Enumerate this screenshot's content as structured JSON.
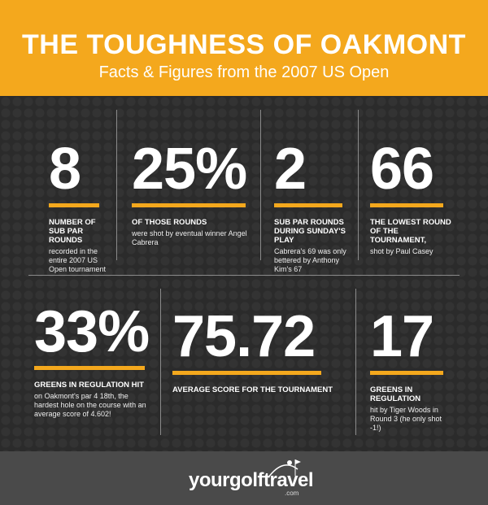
{
  "header": {
    "title": "THE TOUGHNESS OF OAKMONT",
    "subtitle": "Facts & Figures from the 2007 US Open"
  },
  "stats": [
    {
      "number": "8",
      "heading": "NUMBER OF SUB PAR ROUNDS",
      "description": "recorded in the entire 2007 US Open tournament"
    },
    {
      "number": "25%",
      "heading": "OF THOSE ROUNDS",
      "description": "were shot by eventual winner Angel Cabrera"
    },
    {
      "number": "2",
      "heading": "SUB PAR ROUNDS DURING SUNDAY'S PLAY",
      "description": "Cabrera's 69 was only bettered by Anthony Kim's 67"
    },
    {
      "number": "66",
      "heading": "THE LOWEST ROUND OF THE TOURNAMENT,",
      "description": "shot by Paul Casey"
    },
    {
      "number": "33%",
      "heading": "GREENS IN REGULATION HIT",
      "description": "on Oakmont's par 4 18th, the hardest hole on the course with an average score of 4.602!"
    },
    {
      "number": "75.72",
      "heading": "AVERAGE SCORE FOR THE TOURNAMENT",
      "description": null
    },
    {
      "number": "17",
      "heading": "GREENS IN REGULATION",
      "description": "hit by Tiger Woods in Round 3 (he only shot -1!)"
    }
  ],
  "footer": {
    "logo": "yourgolftravel",
    "domain": ".com"
  }
}
